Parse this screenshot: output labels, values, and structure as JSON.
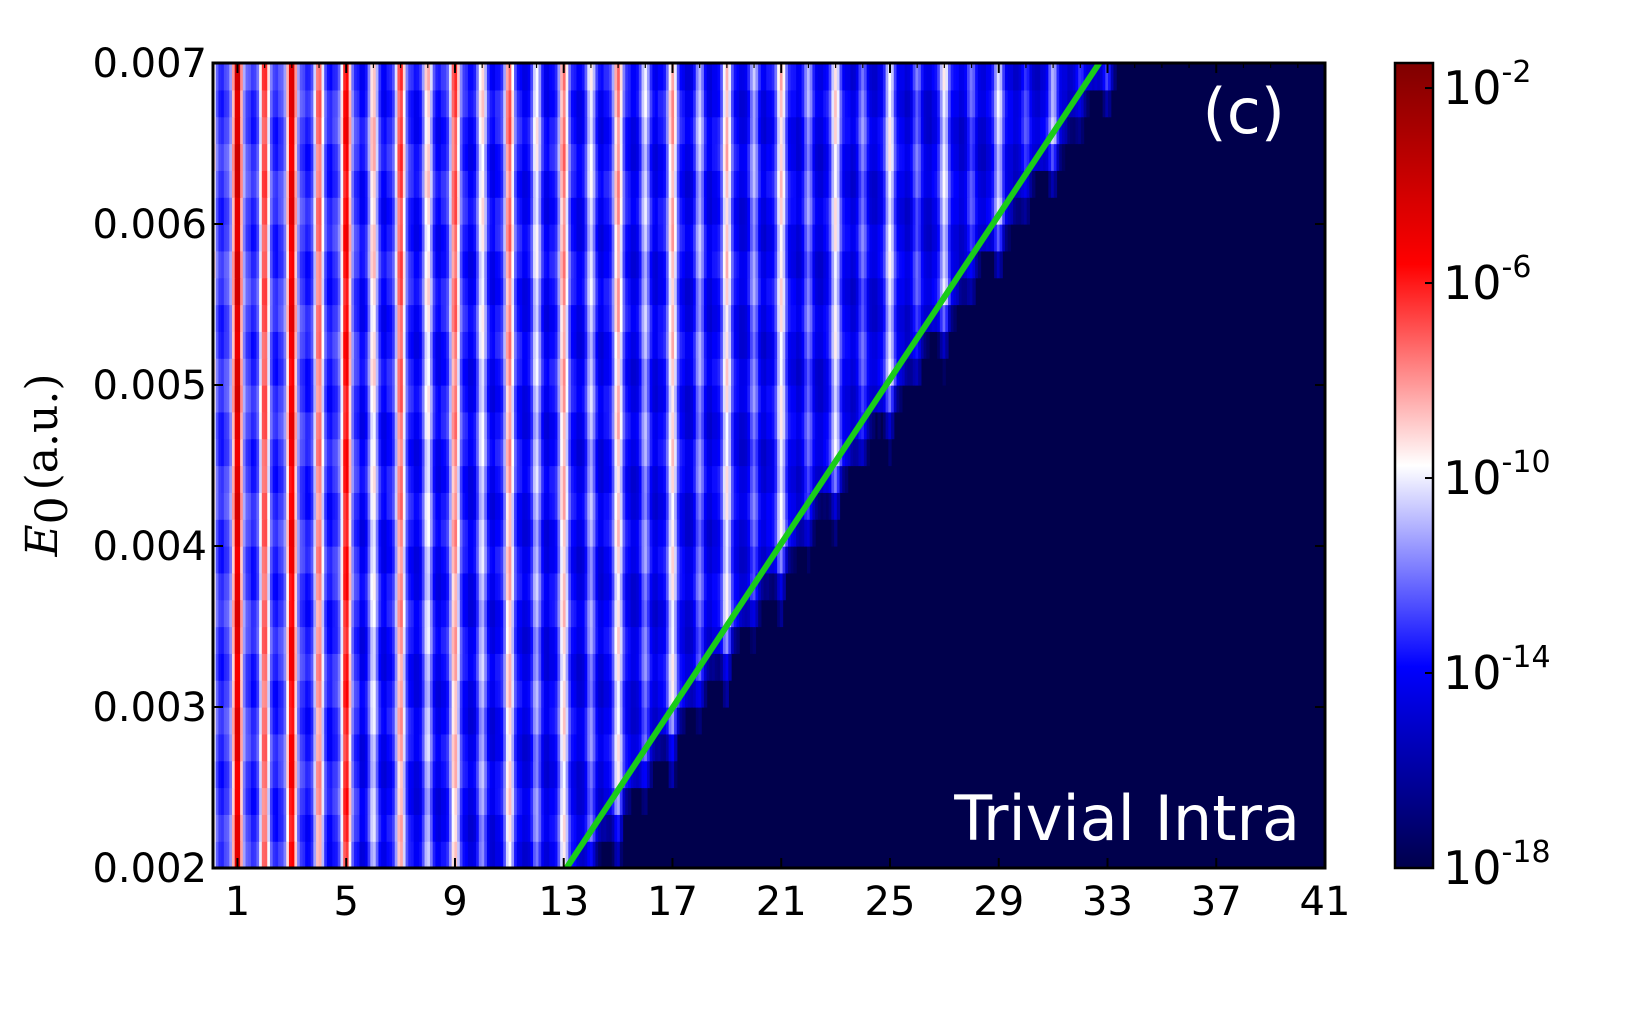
{
  "chart_data": {
    "type": "heatmap",
    "panel_label": "(c)",
    "annotation": "Trivial Intra",
    "xlabel": "",
    "ylabel": {
      "symbol": "E",
      "subscript": "0",
      "unit": "(a.u.)"
    },
    "xlim": [
      0.1,
      41
    ],
    "ylim": [
      0.002,
      0.007
    ],
    "x_ticks": [
      1,
      5,
      9,
      13,
      17,
      21,
      25,
      29,
      33,
      37,
      41
    ],
    "x_tick_labels": [
      "1",
      "5",
      "9",
      "13",
      "17",
      "21",
      "25",
      "29",
      "33",
      "37",
      "41"
    ],
    "y_ticks": [
      0.002,
      0.003,
      0.004,
      0.005,
      0.006,
      0.007
    ],
    "y_tick_labels": [
      "0.002",
      "0.003",
      "0.004",
      "0.005",
      "0.006",
      "0.007"
    ],
    "colorbar": {
      "scale": "log",
      "range": [
        1e-18,
        1.0
      ],
      "ticks": [
        {
          "value": 1e-18,
          "base": "10",
          "exp": "-18"
        },
        {
          "value": 1e-14,
          "base": "10",
          "exp": "-14"
        },
        {
          "value": 1e-10,
          "base": "10",
          "exp": "-10"
        },
        {
          "value": 1e-06,
          "base": "10",
          "exp": "-6"
        },
        {
          "value": 0.01,
          "base": "10",
          "exp": "-2"
        }
      ],
      "colors": [
        "#00004c",
        "#0000ff",
        "#ffffff",
        "#ff0000",
        "#7f0000"
      ]
    },
    "cutoff_line": {
      "color": "#19cc19",
      "points": [
        [
          13.1,
          0.002
        ],
        [
          32.7,
          0.007
        ]
      ]
    },
    "background_color": "#00004c"
  }
}
